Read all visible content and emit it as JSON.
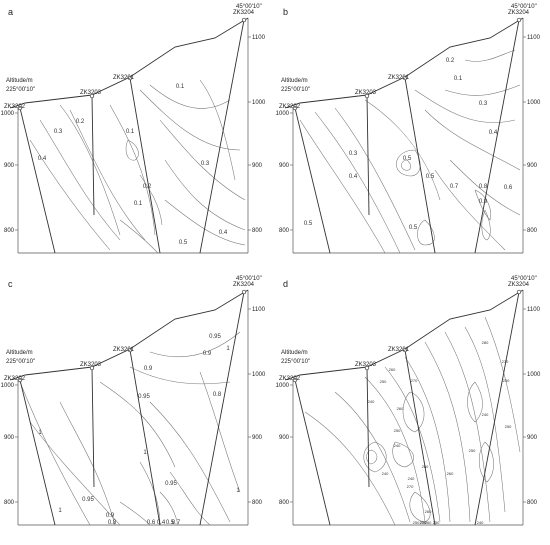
{
  "figure": {
    "panels": [
      {
        "letter": "a",
        "altitude_label": "Altitude/m",
        "left_coord": "225°00'10\"",
        "right_coord": "45°00'10\"",
        "left_ticks": [
          "1000",
          "900",
          "800"
        ],
        "right_ticks": [
          "1100",
          "1000",
          "900",
          "800"
        ],
        "boreholes": [
          "ZK3202",
          "ZK3203",
          "ZK3201",
          "ZK3204"
        ],
        "contour_labels": [
          "0.1",
          "0.2",
          "0.3",
          "0.4",
          "0.1",
          "0.2",
          "0.1",
          "0.3",
          "0.5",
          "0.4"
        ]
      },
      {
        "letter": "b",
        "altitude_label": "Altitude/m",
        "left_coord": "225°00'10\"",
        "right_coord": "45°00'10\"",
        "left_ticks": [
          "1000",
          "900",
          "800"
        ],
        "right_ticks": [
          "1100",
          "1000",
          "900",
          "800"
        ],
        "boreholes": [
          "ZK3202",
          "ZK3203",
          "ZK3201",
          "ZK3204"
        ],
        "contour_labels": [
          "0.1",
          "0.2",
          "0.3",
          "0.4",
          "0.3",
          "0.4",
          "0.5",
          "0.5",
          "0.6",
          "0.7",
          "0.8",
          "0.9",
          "0.5",
          "0.5"
        ]
      },
      {
        "letter": "c",
        "altitude_label": "Altitude/m",
        "left_coord": "225°00'10\"",
        "right_coord": "45°00'10\"",
        "left_ticks": [
          "1000",
          "900",
          "800"
        ],
        "right_ticks": [
          "1100",
          "1000",
          "900",
          "800"
        ],
        "boreholes": [
          "ZK3202",
          "ZK3203",
          "ZK3201",
          "ZK3204"
        ],
        "contour_labels": [
          "0.95",
          "0.9",
          "1",
          "0.9",
          "0.8",
          "0.95",
          "1",
          "1",
          "0.95",
          "0.95",
          "0.9",
          "0.8",
          "0.7",
          "0.6",
          "0.5",
          "0.4",
          "1",
          "1"
        ]
      },
      {
        "letter": "d",
        "altitude_label": "Altitude/m",
        "left_coord": "225°00'10\"",
        "right_coord": "45°00'10\"",
        "left_ticks": [
          "1000",
          "900",
          "800"
        ],
        "right_ticks": [
          "1100",
          "1000",
          "900",
          "800"
        ],
        "boreholes": [
          "ZK3202",
          "ZK3203",
          "ZK3201",
          "ZK3204"
        ],
        "contour_labels": [
          "260",
          "250",
          "240",
          "270",
          "260",
          "250",
          "240",
          "240",
          "250",
          "260",
          "270",
          "280",
          "260",
          "250",
          "240",
          "230",
          "250",
          "270",
          "280",
          "240",
          "250",
          "270",
          "260",
          "250",
          "240"
        ]
      }
    ]
  }
}
